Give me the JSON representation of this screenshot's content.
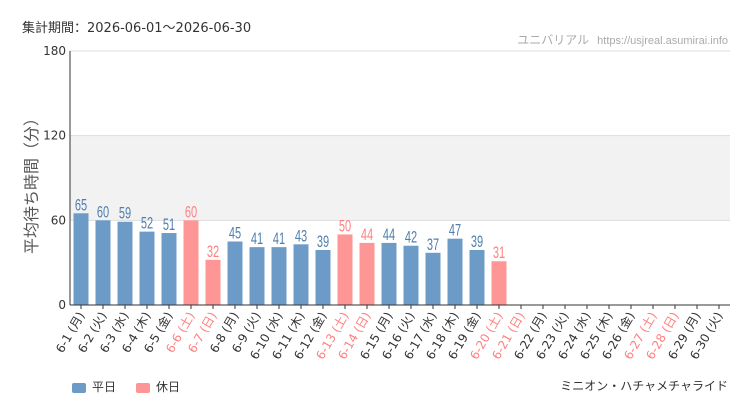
{
  "header": {
    "period": "集計期間：2026-06-01～2026-06-30",
    "site_name": "ユニバリアル",
    "site_url": "https://usjreal.asumirai.info"
  },
  "footer": {
    "attraction_name": "ミニオン・ハチャメチャライド"
  },
  "colors": {
    "weekday": "#6c9bc7",
    "holiday": "#ff9696",
    "weekday_text": "#4f7fae",
    "holiday_text": "#ff8080",
    "band": "#f2f2f2",
    "grid": "#dddddd"
  },
  "chart_data": {
    "type": "bar",
    "ylabel": "平均待ち時間（分）",
    "ylim": [
      0,
      180
    ],
    "yticks": [
      0,
      60,
      120,
      180
    ],
    "shaded_band": [
      60,
      120
    ],
    "grid": true,
    "legend": [
      {
        "name": "平日",
        "color_key": "weekday"
      },
      {
        "name": "休日",
        "color_key": "holiday"
      }
    ],
    "legend_position": "bottom-left",
    "categories": [
      "6-1 (月)",
      "6-2 (火)",
      "6-3 (水)",
      "6-4 (木)",
      "6-5 (金)",
      "6-6 (土)",
      "6-7 (日)",
      "6-8 (月)",
      "6-9 (火)",
      "6-10 (水)",
      "6-11 (木)",
      "6-12 (金)",
      "6-13 (土)",
      "6-14 (日)",
      "6-15 (月)",
      "6-16 (火)",
      "6-17 (水)",
      "6-18 (木)",
      "6-19 (金)",
      "6-20 (土)",
      "6-21 (日)",
      "6-22 (月)",
      "6-23 (火)",
      "6-24 (水)",
      "6-25 (木)",
      "6-26 (金)",
      "6-27 (土)",
      "6-28 (日)",
      "6-29 (月)",
      "6-30 (火)"
    ],
    "holiday": [
      false,
      false,
      false,
      false,
      false,
      true,
      true,
      false,
      false,
      false,
      false,
      false,
      true,
      true,
      false,
      false,
      false,
      false,
      false,
      true,
      true,
      false,
      false,
      false,
      false,
      false,
      true,
      true,
      false,
      false
    ],
    "values": [
      65,
      60,
      59,
      52,
      51,
      60,
      32,
      45,
      41,
      41,
      43,
      39,
      50,
      44,
      44,
      42,
      37,
      47,
      39,
      31,
      null,
      null,
      null,
      null,
      null,
      null,
      null,
      null,
      null,
      null
    ]
  }
}
